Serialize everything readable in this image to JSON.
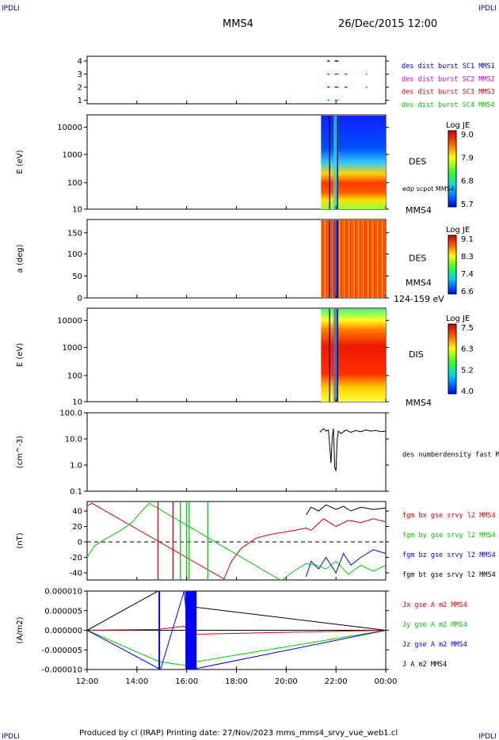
{
  "corner": {
    "tl": "IPDLI",
    "tr": "IPDLI",
    "bl": "IPDLI",
    "br": "IPDLI"
  },
  "header": {
    "spacecraft": "MMS4",
    "datetime": "26/Dec/2015 12:00"
  },
  "footer": "Produced by cl (IRAP)   Printing date: 27/Nov/2023   mms_mms4_srvy_vue_web1.cl",
  "colors": {
    "sc1": "#0000cc",
    "sc2": "#cc00cc",
    "sc3": "#dd0000",
    "sc4": "#00cc00",
    "bt": "#000000",
    "blue": "#0000ff"
  },
  "time_axis": {
    "ticks": [
      "12:00",
      "14:00",
      "16:00",
      "18:00",
      "20:00",
      "22:00",
      "00:00"
    ],
    "range_hours": [
      12,
      24
    ]
  },
  "panels": [
    {
      "id": "burst",
      "ylabel": "",
      "yticks": [
        "4",
        "3",
        "2",
        "1"
      ],
      "labels": [
        "des dist burst SC1 MMS1",
        "des dist burst SC2 MMS2",
        "des dist burst SC3 MMS3",
        "des dist burst SC4 MMS4"
      ]
    },
    {
      "id": "des-energy",
      "ylabel": "E (eV)",
      "yticks": [
        "10000",
        "1000",
        "100",
        "10"
      ],
      "side_label": "DES",
      "side_sub": "edp scpot MMS4",
      "probe": "MMS4",
      "colorbar": {
        "title": "Log JE",
        "ticks": [
          "9.0",
          "7.9",
          "6.8",
          "5.7"
        ]
      }
    },
    {
      "id": "des-pitch",
      "ylabel": "a (deg)",
      "yticks": [
        "150",
        "100",
        "50",
        "0"
      ],
      "side_label": "DES",
      "probe": "MMS4",
      "range": "124-159 eV",
      "colorbar": {
        "title": "Log JE",
        "ticks": [
          "9.1",
          "8.3",
          "7.4",
          "6.6"
        ]
      }
    },
    {
      "id": "dis-energy",
      "ylabel": "E (eV)",
      "yticks": [
        "10000",
        "1000",
        "100",
        "10"
      ],
      "side_label": "DIS",
      "probe": "MMS4",
      "colorbar": {
        "title": "Log JE",
        "ticks": [
          "7.5",
          "6.3",
          "5.2",
          "4.0"
        ]
      }
    },
    {
      "id": "density",
      "ylabel": "(cm^-3)",
      "yticks": [
        "100.0",
        "10.0",
        "1.0",
        "0.1"
      ],
      "labels": [
        "des numberdensity fast M"
      ]
    },
    {
      "id": "fgm",
      "ylabel": "(nT)",
      "yticks": [
        "40",
        "20",
        "0",
        "-20",
        "-40"
      ],
      "labels": [
        "fgm bx gse srvy l2 MMS4",
        "fgm by gse srvy l2 MMS4",
        "fgm bz gse srvy l2 MMS4",
        "fgm bt gse srvy l2 MMS4"
      ]
    },
    {
      "id": "current",
      "ylabel": "(A/m2)",
      "yticks": [
        "0.000010",
        "0.000005",
        "0.000000",
        "-0.000005",
        "-0.000010"
      ],
      "labels": [
        "Jx gse A m2 MMS4",
        "Jy gse A m2 MMS4",
        "Jz gse A m2 MMS4",
        "J A m2 MMS4"
      ]
    }
  ],
  "chart_data": [
    {
      "type": "scatter",
      "title": "",
      "ylabel": "",
      "note": "burst intervals per spacecraft (y = spacecraft number)",
      "series": [
        {
          "name": "des dist burst SC1 MMS1",
          "y": 4,
          "intervals_hours": [
            [
              21.65,
              21.75
            ],
            [
              21.95,
              22.1
            ]
          ]
        },
        {
          "name": "des dist burst SC2 MMS2",
          "y": 3,
          "intervals_hours": [
            [
              21.65,
              21.75
            ],
            [
              21.95,
              22.1
            ],
            [
              22.35,
              22.45
            ],
            [
              23.2,
              23.25
            ]
          ]
        },
        {
          "name": "des dist burst SC3 MMS3",
          "y": 2,
          "intervals_hours": [
            [
              21.65,
              21.75
            ],
            [
              21.95,
              22.1
            ],
            [
              22.35,
              22.45
            ],
            [
              23.2,
              23.25
            ]
          ]
        },
        {
          "name": "des dist burst SC4 MMS4",
          "y": 1,
          "intervals_hours": [
            [
              21.65,
              21.75
            ],
            [
              21.95,
              22.1
            ]
          ]
        }
      ]
    },
    {
      "type": "heatmap",
      "title": "DES",
      "ylabel": "E (eV)",
      "yscale": "log",
      "ylim": [
        10,
        30000
      ],
      "data_start_hour": 21.4,
      "data_end_hour": 24,
      "colorbar": "Log JE",
      "clim": [
        5.7,
        9.0
      ]
    },
    {
      "type": "heatmap",
      "title": "DES",
      "ylabel": "a (deg)",
      "ylim": [
        0,
        180
      ],
      "data_start_hour": 21.4,
      "data_end_hour": 24,
      "colorbar": "Log JE",
      "clim": [
        6.6,
        9.1
      ],
      "energy_range": "124-159 eV"
    },
    {
      "type": "heatmap",
      "title": "DIS",
      "ylabel": "E (eV)",
      "yscale": "log",
      "ylim": [
        10,
        30000
      ],
      "data_start_hour": 21.4,
      "data_end_hour": 24,
      "colorbar": "Log JE",
      "clim": [
        4.0,
        7.5
      ]
    },
    {
      "type": "line",
      "ylabel": "(cm^-3)",
      "yscale": "log",
      "ylim": [
        0.1,
        100
      ],
      "series": [
        {
          "name": "des numberdensity fast M",
          "x": [
            21.35,
            21.5,
            21.6,
            21.7,
            21.8,
            21.85,
            21.9,
            21.95,
            22.0,
            22.05,
            22.1,
            22.2,
            22.4,
            22.6,
            22.8,
            23.0,
            23.2,
            23.4,
            23.6,
            23.8,
            24.0
          ],
          "y": [
            18,
            25,
            20,
            22,
            1.2,
            12,
            25,
            0.8,
            0.6,
            10,
            20,
            16,
            22,
            18,
            21,
            19,
            22,
            20,
            21,
            19,
            20
          ]
        }
      ]
    },
    {
      "type": "line",
      "ylabel": "(nT)",
      "ylim": [
        -50,
        50
      ],
      "series": [
        {
          "name": "fgm bx gse srvy l2 MMS4",
          "x": [
            12.0,
            12.2,
            17.5,
            17.8,
            18.2,
            18.8,
            19.4,
            20.0,
            20.5,
            20.8,
            21.0,
            21.5,
            22.0,
            22.5,
            23.0,
            23.5,
            24.0
          ],
          "y": [
            47,
            50,
            -48,
            -25,
            -8,
            5,
            10,
            13,
            16,
            18,
            15,
            30,
            20,
            28,
            25,
            30,
            26
          ]
        },
        {
          "name": "fgm by gse srvy l2 MMS4",
          "x": [
            12.0,
            12.3,
            12.8,
            13.3,
            13.8,
            14.2,
            14.5,
            19.8,
            20.3,
            20.8,
            21.2,
            21.6,
            22.0,
            22.5,
            23.0,
            23.5,
            24.0
          ],
          "y": [
            -20,
            -5,
            5,
            14,
            25,
            40,
            50,
            -50,
            -38,
            -28,
            -30,
            -35,
            -25,
            -42,
            -30,
            -38,
            -30
          ]
        },
        {
          "name": "fgm bz gse srvy l2 MMS4",
          "x": [
            20.8,
            21.0,
            21.3,
            21.6,
            22.0,
            22.3,
            22.6,
            23.0,
            23.5,
            24.0
          ],
          "y": [
            -45,
            -25,
            -35,
            -20,
            -40,
            -15,
            -30,
            -20,
            -10,
            -15
          ]
        },
        {
          "name": "fgm bt gse srvy l2 MMS4",
          "x": [
            20.8,
            21.0,
            21.3,
            21.6,
            22.0,
            22.3,
            22.6,
            23.0,
            23.5,
            24.0
          ],
          "y": [
            35,
            45,
            40,
            48,
            42,
            46,
            40,
            45,
            42,
            44
          ]
        }
      ]
    },
    {
      "type": "line",
      "ylabel": "(A/m2)",
      "ylim": [
        -1e-05,
        1e-05
      ],
      "series": [
        {
          "name": "Jx gse A m2 MMS4",
          "x": [
            12,
            14.8,
            15.9,
            16.3,
            24
          ],
          "y": [
            0,
            2e-07,
            1e-06,
            -1e-06,
            0
          ]
        },
        {
          "name": "Jy gse A m2 MMS4",
          "x": [
            12,
            14.9,
            16.0,
            16.4,
            24
          ],
          "y": [
            0,
            -8e-06,
            -9e-06,
            -8e-06,
            0
          ]
        },
        {
          "name": "Jz gse A m2 MMS4",
          "x": [
            12,
            14.95,
            15.9,
            16.2,
            24
          ],
          "y": [
            0,
            -1e-05,
            1e-05,
            -1e-05,
            0
          ]
        },
        {
          "name": "J A m2 MMS4",
          "x": [
            12,
            14.85,
            16.0,
            16.2,
            24
          ],
          "y": [
            0,
            1e-05,
            1e-05,
            6e-06,
            0
          ]
        }
      ]
    }
  ]
}
